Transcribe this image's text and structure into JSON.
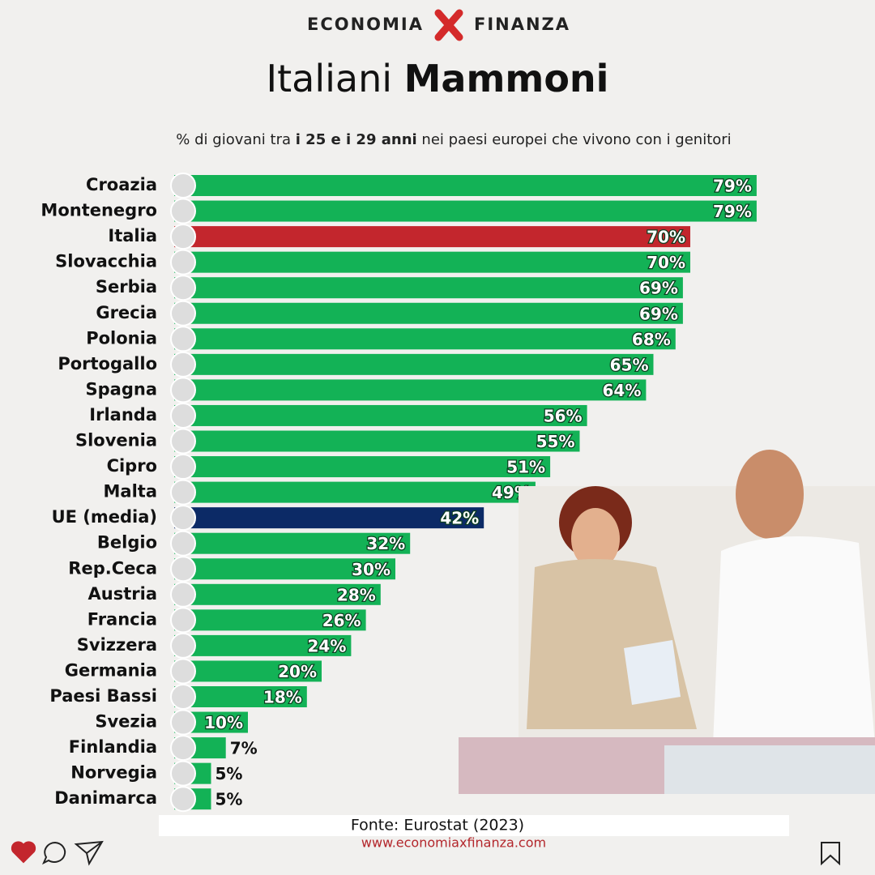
{
  "brand": [
    "ECONOMIA",
    "FINANZA"
  ],
  "chart_data": {
    "type": "bar",
    "orientation": "horizontal",
    "title": [
      "Italiani",
      "Mammoni"
    ],
    "subtitle": [
      "% di giovani  tra",
      "i 25 e i 29 anni",
      "nei paesi europei che vivono con i genitori"
    ],
    "categories": [
      "Croazia",
      "Montenegro",
      "Italia",
      "Slovacchia",
      "Serbia",
      "Grecia",
      "Polonia",
      "Portogallo",
      "Spagna",
      "Irlanda",
      "Slovenia",
      "Cipro",
      "Malta",
      "UE (media)",
      "Belgio",
      "Rep.Ceca",
      "Austria",
      "Francia",
      "Svizzera",
      "Germania",
      "Paesi Bassi",
      "Svezia",
      "Finlandia",
      "Norvegia",
      "Danimarca"
    ],
    "values": [
      79,
      79,
      70,
      70,
      69,
      69,
      68,
      65,
      64,
      56,
      55,
      51,
      49,
      42,
      32,
      30,
      28,
      26,
      24,
      20,
      18,
      10,
      7,
      5,
      5
    ],
    "value_labels": [
      "79%",
      "79%",
      "70%",
      "70%",
      "69%",
      "69%",
      "68%",
      "65%",
      "64%",
      "56%",
      "55%",
      "51%",
      "49%",
      "42%",
      "32%",
      "30%",
      "28%",
      "26%",
      "24%",
      "20%",
      "18%",
      "10%",
      "7%",
      "5%",
      "5%"
    ],
    "colors": [
      "#13b256",
      "#13b256",
      "#c3262d",
      "#13b256",
      "#13b256",
      "#13b256",
      "#13b256",
      "#13b256",
      "#13b256",
      "#13b256",
      "#13b256",
      "#13b256",
      "#13b256",
      "#0c2a66",
      "#13b256",
      "#13b256",
      "#13b256",
      "#13b256",
      "#13b256",
      "#13b256",
      "#13b256",
      "#13b256",
      "#13b256",
      "#13b256",
      "#13b256"
    ],
    "source": "Fonte: Eurostat (2023)"
  },
  "website": "www.economiaxfinanza.com"
}
